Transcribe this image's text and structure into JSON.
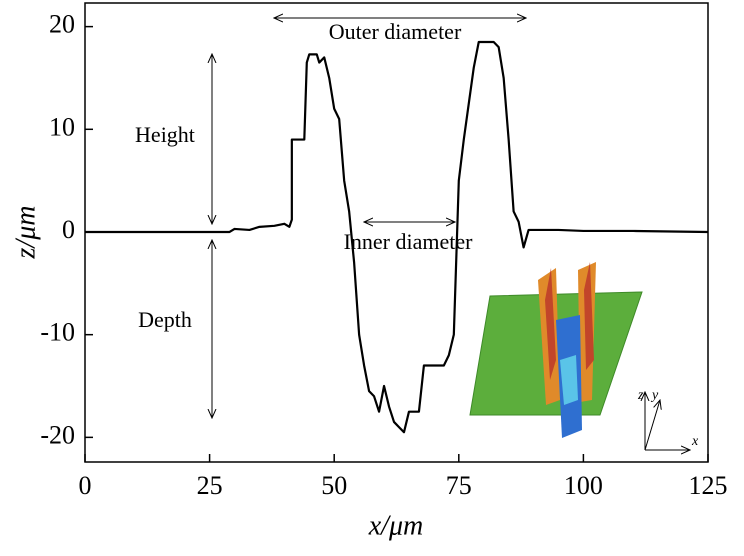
{
  "chart_data": {
    "type": "line",
    "x_label": "x/μm",
    "y_label": "z/μm",
    "x": [
      0,
      29,
      30,
      33,
      35,
      38,
      40,
      41,
      41.5,
      41.5,
      44,
      44.5,
      45,
      46.5,
      47,
      48,
      49,
      50,
      51,
      52,
      53,
      54,
      55,
      56,
      57,
      58,
      59,
      60,
      61,
      62,
      63,
      64,
      65,
      67,
      68,
      72,
      73,
      74,
      75,
      76,
      78,
      79,
      82,
      83,
      84,
      85,
      86,
      87,
      88,
      89,
      95,
      100,
      110,
      125
    ],
    "values": [
      0,
      0,
      0.3,
      0.2,
      0.5,
      0.6,
      0.8,
      0.5,
      1.2,
      9,
      9,
      16.5,
      17.3,
      17.3,
      16.5,
      17,
      15,
      12,
      11,
      5,
      2,
      -3,
      -10,
      -13,
      -15.5,
      -16,
      -17.5,
      -15,
      -17,
      -18.5,
      -19,
      -19.5,
      -17.5,
      -17.5,
      -13,
      -13,
      -12,
      -10,
      5,
      9,
      16,
      18.5,
      18.5,
      18,
      15,
      9,
      2,
      1,
      -1.5,
      0.2,
      0.2,
      0.1,
      0.1,
      0
    ],
    "color": "#000000",
    "xlim": [
      0,
      125
    ],
    "xticks": [
      0,
      25,
      50,
      75,
      100,
      125
    ],
    "ylim": [
      -22.4,
      22.3
    ],
    "yticks": [
      -20,
      -10,
      0,
      10,
      20
    ],
    "annotations": {
      "outer": "Outer diameter",
      "inner": "Inner diameter",
      "height": "Height",
      "depth": "Depth"
    },
    "inset_labels": {
      "z": "z",
      "y": "y",
      "x": "x"
    }
  }
}
